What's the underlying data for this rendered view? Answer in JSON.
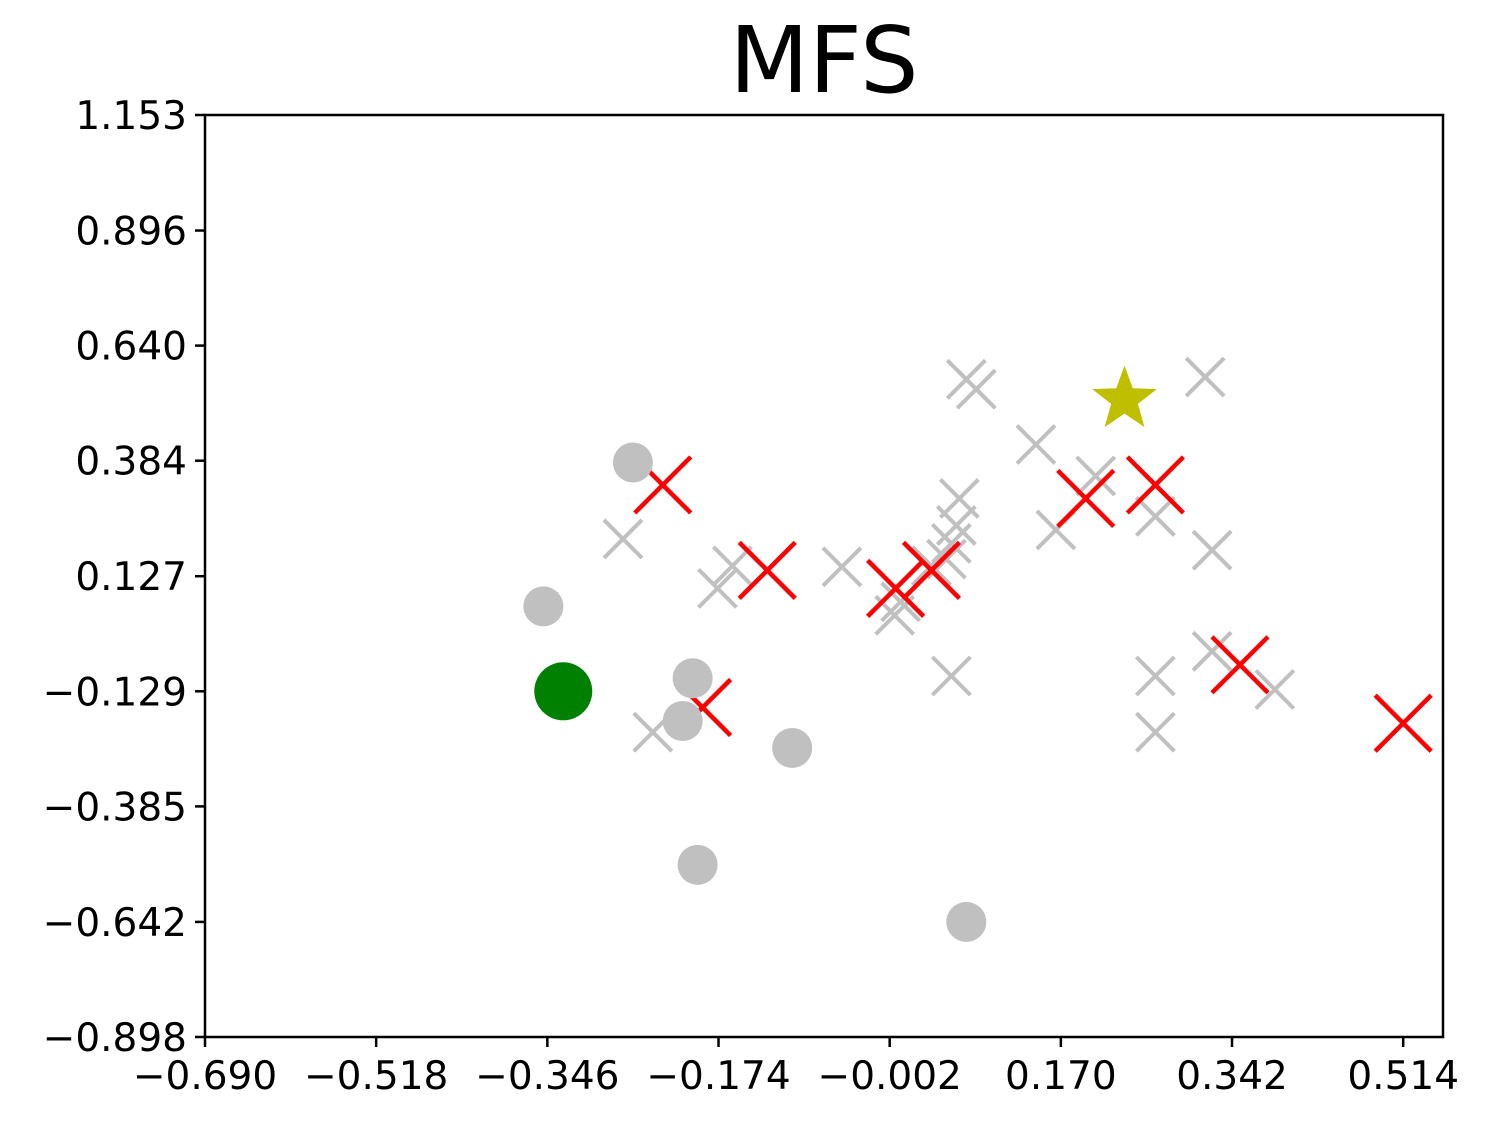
{
  "chart_data": {
    "type": "scatter",
    "title": "MFS",
    "xlabel": "",
    "ylabel": "",
    "xlim": [
      -0.69,
      0.554
    ],
    "ylim": [
      -0.898,
      1.153
    ],
    "x_ticks": [
      "−0.690",
      "−0.518",
      "−0.346",
      "−0.174",
      "−0.002",
      "0.170",
      "0.342",
      "0.514"
    ],
    "x_tick_values": [
      -0.69,
      -0.518,
      -0.346,
      -0.174,
      -0.002,
      0.17,
      0.342,
      0.514
    ],
    "y_ticks": [
      "1.153",
      "0.896",
      "0.640",
      "0.384",
      "0.127",
      "−0.129",
      "−0.385",
      "−0.642",
      "−0.898"
    ],
    "y_tick_values": [
      1.153,
      0.896,
      0.64,
      0.384,
      0.127,
      -0.129,
      -0.385,
      -0.642,
      -0.898
    ],
    "grid": false,
    "legend": "none",
    "colors": {
      "gray": "#c0c0c0",
      "red": "#ff0000",
      "green": "#008000",
      "star": "#bfbf00"
    },
    "series": [
      {
        "marker": "x",
        "color": "#c0c0c0",
        "points": [
          [
            -0.27,
            0.21
          ],
          [
            -0.24,
            -0.22
          ],
          [
            -0.16,
            0.15
          ],
          [
            -0.175,
            0.1
          ],
          [
            -0.05,
            0.148
          ],
          [
            0.003,
            0.04
          ],
          [
            0.009,
            0.07
          ],
          [
            0.04,
            0.15
          ],
          [
            0.055,
            0.165
          ],
          [
            0.06,
            0.2
          ],
          [
            0.065,
            0.24
          ],
          [
            0.068,
            0.3
          ],
          [
            0.06,
            -0.095
          ],
          [
            0.075,
            0.565
          ],
          [
            0.085,
            0.543
          ],
          [
            0.145,
            0.42
          ],
          [
            0.165,
            0.23
          ],
          [
            0.205,
            0.35
          ],
          [
            0.265,
            0.26
          ],
          [
            0.265,
            -0.095
          ],
          [
            0.265,
            -0.22
          ],
          [
            0.315,
            0.57
          ],
          [
            0.322,
            0.185
          ],
          [
            0.322,
            -0.04
          ],
          [
            0.385,
            -0.125
          ]
        ]
      },
      {
        "marker": "x",
        "color": "#ff0000",
        "points": [
          [
            -0.23,
            0.33
          ],
          [
            -0.19,
            -0.165
          ],
          [
            -0.125,
            0.14
          ],
          [
            0.004,
            0.1
          ],
          [
            0.04,
            0.14
          ],
          [
            0.195,
            0.3
          ],
          [
            0.265,
            0.33
          ],
          [
            0.35,
            -0.07
          ],
          [
            0.514,
            -0.2
          ]
        ]
      },
      {
        "marker": "o",
        "color": "#c0c0c0",
        "points": [
          [
            -0.26,
            0.38
          ],
          [
            -0.35,
            0.06
          ],
          [
            -0.2,
            -0.1
          ],
          [
            -0.21,
            -0.195
          ],
          [
            -0.1,
            -0.255
          ],
          [
            -0.195,
            -0.515
          ],
          [
            0.075,
            -0.642
          ]
        ]
      },
      {
        "marker": "o",
        "color": "#008000",
        "points": [
          [
            -0.33,
            -0.129
          ]
        ]
      },
      {
        "marker": "*",
        "color": "#bfbf00",
        "points": [
          [
            0.234,
            0.52
          ]
        ]
      }
    ]
  }
}
